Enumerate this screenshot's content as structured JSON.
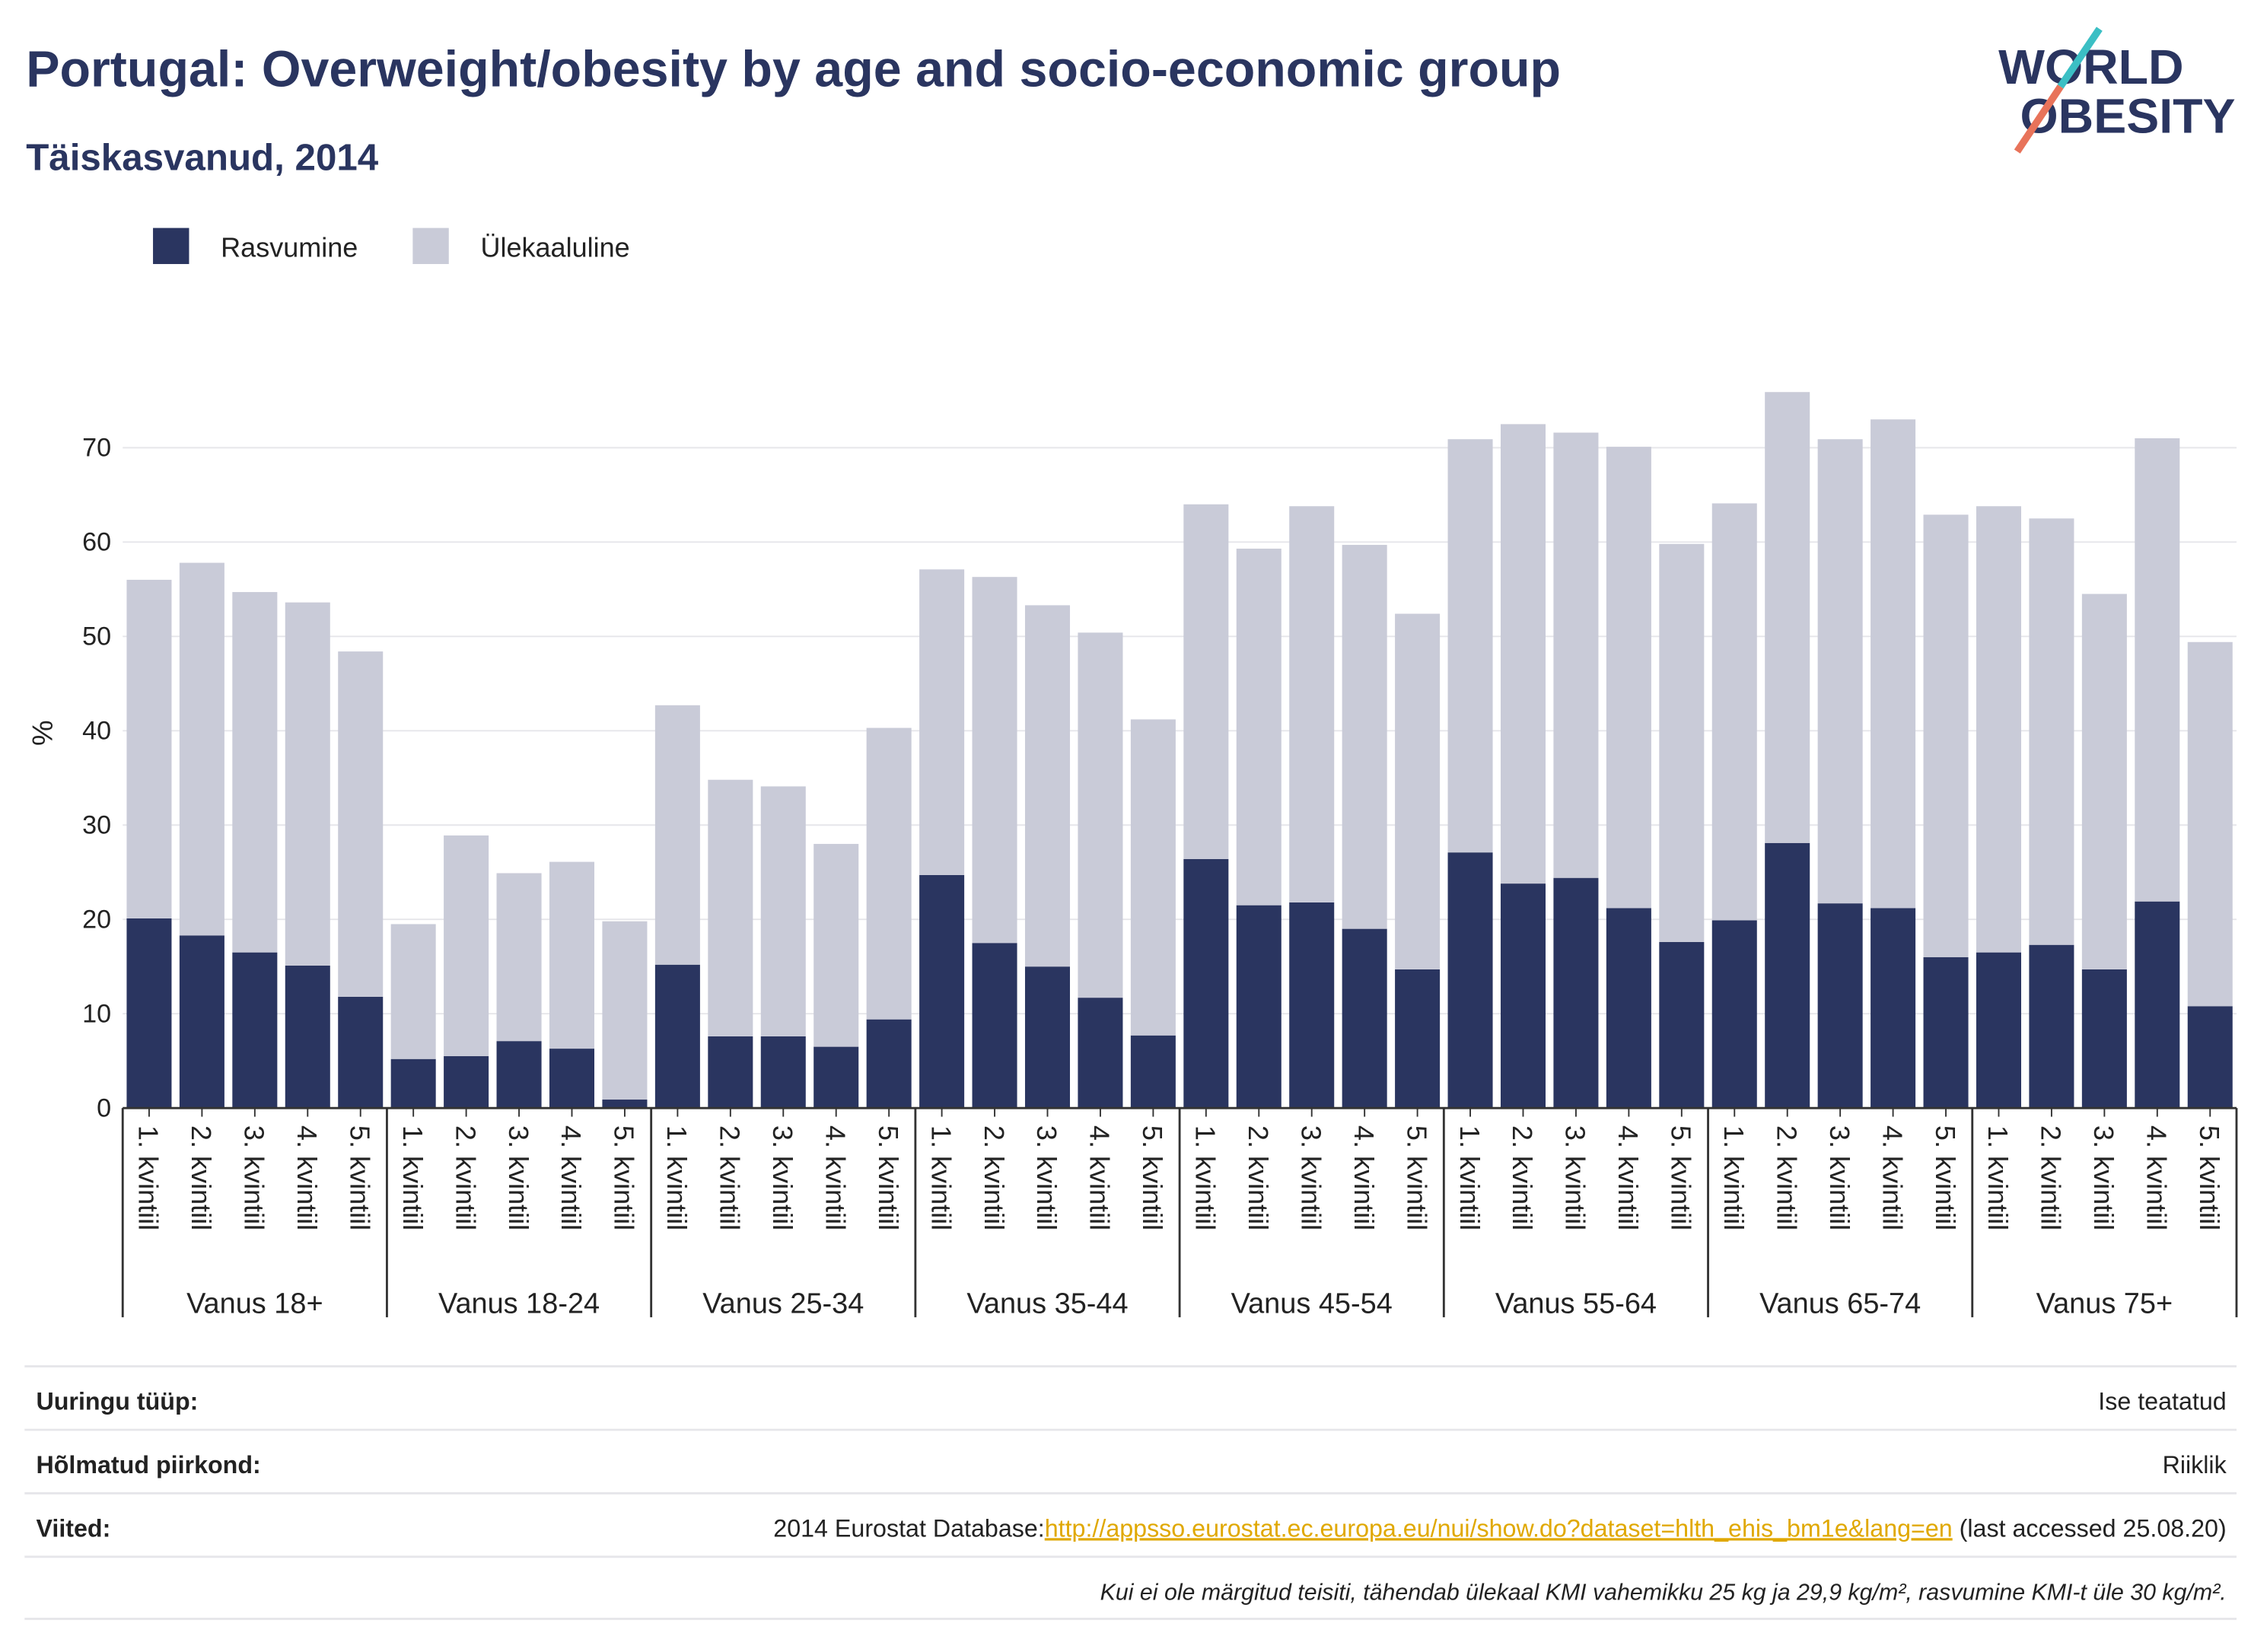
{
  "chart_data": {
    "type": "stacked_bar",
    "title": "Portugal: Overweight/obesity by age and socio-economic group",
    "subtitle": "Täiskasvanud, 2014",
    "ylabel": "%",
    "groups": [
      "Vanus 18+",
      "Vanus 18-24",
      "Vanus 25-34",
      "Vanus 35-44",
      "Vanus 45-54",
      "Vanus 55-64",
      "Vanus 65-74",
      "Vanus 75+"
    ],
    "categories": [
      "1. kvintiil",
      "2. kvintiil",
      "3. kvintiil",
      "4. kvintiil",
      "5. kvintiil",
      "1. kvintiil",
      "2. kvintiil",
      "3. kvintiil",
      "4. kvintiil",
      "5. kvintiil",
      "1. kvintiil",
      "2. kvintiil",
      "3. kvintiil",
      "4. kvintiil",
      "5. kvintiil",
      "1. kvintiil",
      "2. kvintiil",
      "3. kvintiil",
      "4. kvintiil",
      "5. kvintiil",
      "1. kvintiil",
      "2. kvintiil",
      "3. kvintiil",
      "4. kvintiil",
      "5. kvintiil",
      "1. kvintiil",
      "2. kvintiil",
      "3. kvintiil",
      "4. kvintiil",
      "5. kvintiil",
      "1. kvintiil",
      "2. kvintiil",
      "3. kvintiil",
      "4. kvintiil",
      "5. kvintiil",
      "1. kvintiil",
      "2. kvintiil",
      "3. kvintiil",
      "4. kvintiil",
      "5. kvintiil"
    ],
    "series": [
      {
        "name": "Rasvumine",
        "color": "#2a3560",
        "values": [
          20.1,
          18.3,
          16.5,
          15.1,
          11.8,
          5.2,
          5.5,
          7.1,
          6.3,
          0.9,
          15.2,
          7.6,
          7.6,
          6.5,
          9.4,
          24.7,
          17.5,
          15.0,
          11.7,
          7.7,
          26.4,
          21.5,
          21.8,
          19.0,
          14.7,
          27.1,
          23.8,
          24.4,
          21.2,
          17.6,
          19.9,
          28.1,
          21.7,
          21.2,
          16.0,
          16.5,
          17.3,
          14.7,
          21.9,
          10.8
        ]
      },
      {
        "name": "Ülekaaluline",
        "color": "#c9cbd8",
        "values": [
          35.9,
          39.5,
          38.2,
          38.5,
          36.6,
          14.3,
          23.4,
          17.8,
          19.8,
          18.9,
          27.5,
          27.2,
          26.5,
          21.5,
          30.9,
          32.4,
          38.8,
          38.3,
          38.7,
          33.5,
          37.6,
          37.8,
          42.0,
          40.7,
          37.7,
          43.8,
          48.7,
          47.2,
          48.9,
          42.2,
          44.2,
          47.8,
          49.2,
          51.8,
          46.9,
          47.3,
          45.2,
          39.8,
          49.1,
          38.6
        ]
      }
    ],
    "ylim": [
      0,
      78
    ],
    "yticks": [
      0,
      10,
      20,
      30,
      40,
      50,
      60,
      70
    ],
    "grid": true,
    "legend": "top-left"
  },
  "logo": {
    "line1": "WORLD",
    "line2": "OBESITY"
  },
  "footer": {
    "rows": [
      {
        "label": "Uuringu tüüp:",
        "value": "Ise teatatud"
      },
      {
        "label": "Hõlmatud piirkond:",
        "value": "Riiklik"
      }
    ],
    "references": {
      "label": "Viited:",
      "prefix": "2014 Eurostat Database:",
      "link": "http://appsso.eurostat.ec.europa.eu/nui/show.do?dataset=hlth_ehis_bm1e&lang=en",
      "suffix": " (last accessed 25.08.20)"
    },
    "note": "Kui ei ole märgitud teisiti, tähendab ülekaal KMI vahemikku 25 kg ja 29,9 kg/m², rasvumine KMI-t üle 30 kg/m²."
  }
}
